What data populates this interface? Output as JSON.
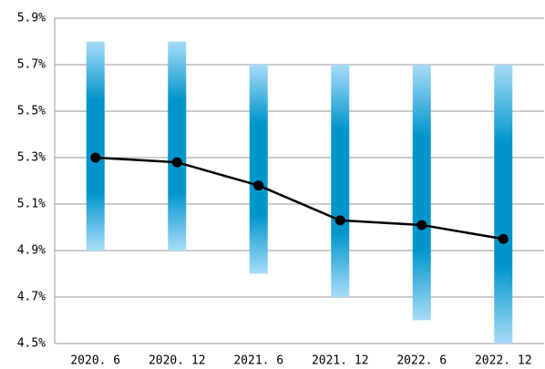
{
  "chart_data": {
    "type": "range_line",
    "categories": [
      "2020. 6",
      "2020. 12",
      "2021. 6",
      "2021. 12",
      "2022. 6",
      "2022. 12"
    ],
    "ranges": {
      "low": [
        4.9,
        4.9,
        4.8,
        4.7,
        4.6,
        4.5
      ],
      "high": [
        5.8,
        5.8,
        5.7,
        5.7,
        5.7,
        5.7
      ]
    },
    "range_colors": [
      "#a8dcf8",
      "#0095cc"
    ],
    "values": [
      5.3,
      5.28,
      5.18,
      5.03,
      5.01,
      4.95
    ],
    "color": "#000000",
    "ylim": [
      4.5,
      5.9
    ],
    "yticks": [
      {
        "value": 4.5,
        "label": "4.5%"
      },
      {
        "value": 4.7,
        "label": "4.7%"
      },
      {
        "value": 4.9,
        "label": "4.9%"
      },
      {
        "value": 5.1,
        "label": "5.1%"
      },
      {
        "value": 5.3,
        "label": "5.3%"
      },
      {
        "value": 5.5,
        "label": "5.5%"
      },
      {
        "value": 5.7,
        "label": "5.7%"
      },
      {
        "value": 5.9,
        "label": "5.9%"
      }
    ],
    "grid": true
  }
}
